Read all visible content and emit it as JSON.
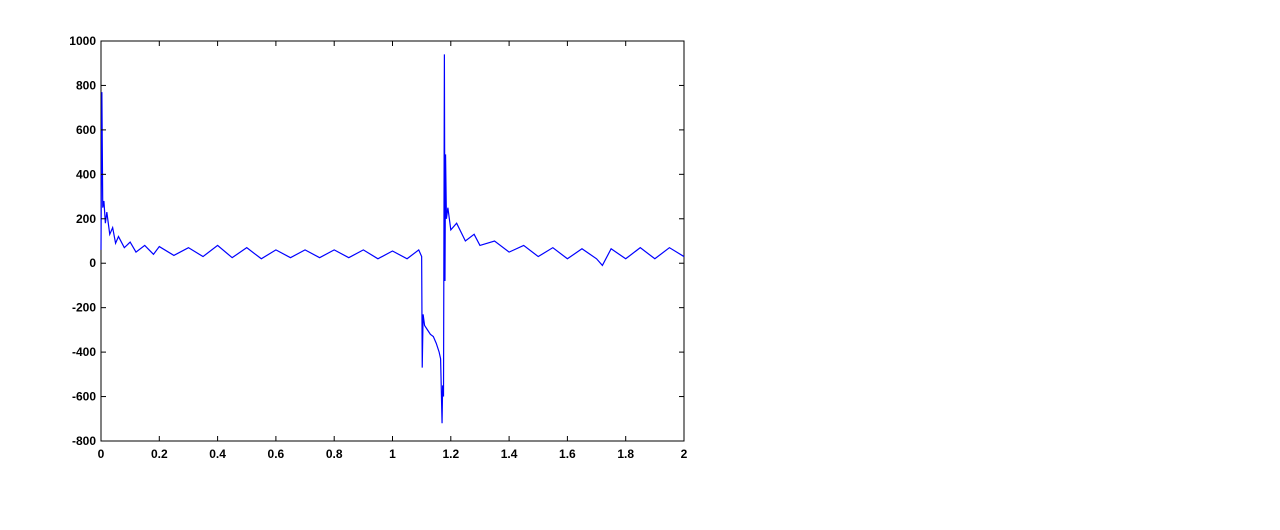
{
  "chart_data": {
    "type": "line",
    "color": "#0000ff",
    "x": [
      0,
      0.003,
      0.006,
      0.01,
      0.015,
      0.02,
      0.03,
      0.04,
      0.05,
      0.06,
      0.08,
      0.1,
      0.12,
      0.15,
      0.18,
      0.2,
      0.25,
      0.3,
      0.35,
      0.4,
      0.45,
      0.5,
      0.55,
      0.6,
      0.65,
      0.7,
      0.75,
      0.8,
      0.85,
      0.9,
      0.95,
      1.0,
      1.05,
      1.09,
      1.1,
      1.102,
      1.105,
      1.11,
      1.12,
      1.13,
      1.14,
      1.15,
      1.16,
      1.165,
      1.17,
      1.172,
      1.175,
      1.178,
      1.18,
      1.182,
      1.185,
      1.19,
      1.2,
      1.22,
      1.25,
      1.28,
      1.3,
      1.35,
      1.4,
      1.45,
      1.5,
      1.55,
      1.6,
      1.65,
      1.7,
      1.72,
      1.75,
      1.8,
      1.85,
      1.9,
      1.95,
      2.0
    ],
    "values": [
      60,
      770,
      250,
      280,
      180,
      230,
      130,
      160,
      90,
      120,
      70,
      95,
      50,
      80,
      40,
      75,
      35,
      70,
      30,
      80,
      25,
      70,
      20,
      60,
      25,
      60,
      25,
      60,
      25,
      60,
      20,
      55,
      20,
      60,
      30,
      -470,
      -230,
      -280,
      -300,
      -320,
      -330,
      -360,
      -400,
      -430,
      -720,
      -550,
      -600,
      940,
      -80,
      490,
      200,
      250,
      150,
      180,
      100,
      130,
      80,
      100,
      50,
      80,
      30,
      70,
      20,
      65,
      20,
      -10,
      65,
      20,
      70,
      20,
      70,
      30
    ],
    "xlim": [
      0,
      2
    ],
    "xticks": [
      0,
      0.2,
      0.4,
      0.6,
      0.8,
      1,
      1.2,
      1.4,
      1.6,
      1.8,
      2
    ],
    "ylim": [
      -800,
      1000
    ],
    "yticks": [
      -800,
      -600,
      -400,
      -200,
      0,
      200,
      400,
      600,
      800,
      1000
    ]
  }
}
